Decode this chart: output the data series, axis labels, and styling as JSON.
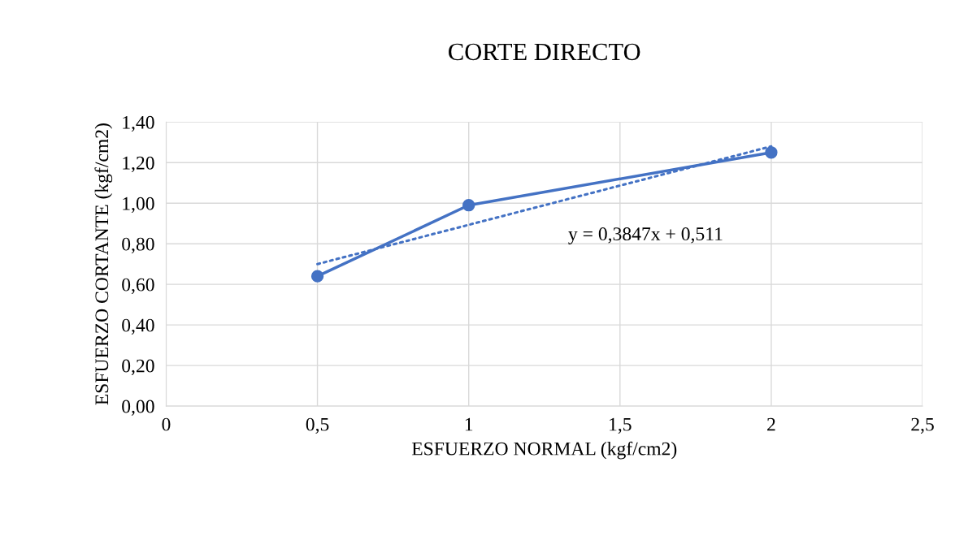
{
  "chart_data": {
    "type": "line",
    "title": "CORTE DIRECTO",
    "xlabel": "ESFUERZO NORMAL (kgf/cm2)",
    "ylabel": "ESFUERZO CORTANTE (kgf/cm2)",
    "x": [
      0.5,
      1,
      2
    ],
    "series": [
      {
        "color": "#4472c4",
        "values": [
          0.64,
          0.99,
          1.25
        ],
        "marker": "circle",
        "line_style": "solid"
      },
      {
        "x": [
          0.5,
          2
        ],
        "color": "#4472c4",
        "values": [
          0.7,
          1.28
        ],
        "marker": "none",
        "line_style": "dotted"
      }
    ],
    "xlim": [
      0,
      2.5
    ],
    "xticks": [
      0,
      {
        "value": 0.5,
        "label": "0,5"
      },
      1,
      {
        "value": 1.5,
        "label": "1,5"
      },
      2,
      {
        "value": 2.5,
        "label": "2,5"
      }
    ],
    "ylim": [
      0,
      1.4
    ],
    "yticks": [
      {
        "value": 0,
        "label": "0,00"
      },
      {
        "value": 0.2,
        "label": "0,20"
      },
      {
        "value": 0.4,
        "label": "0,40"
      },
      {
        "value": 0.6,
        "label": "0,60"
      },
      {
        "value": 0.8,
        "label": "0,80"
      },
      {
        "value": 1.0,
        "label": "1,00"
      },
      {
        "value": 1.2,
        "label": "1,20"
      },
      {
        "value": 1.4,
        "label": "1,40"
      }
    ],
    "grid": true,
    "annotations": [
      "y = 0,3847x + 0,511"
    ]
  }
}
